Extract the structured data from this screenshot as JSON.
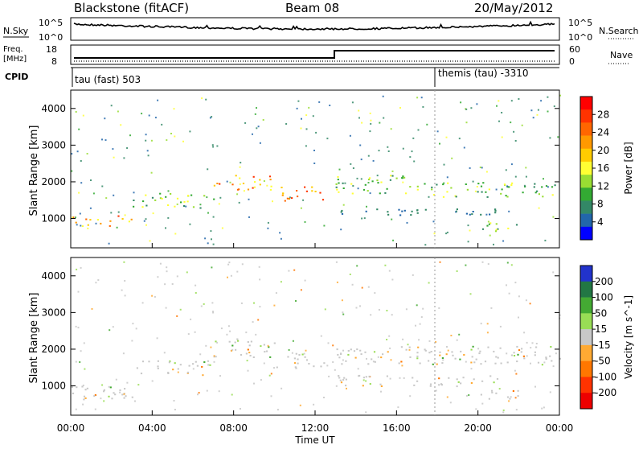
{
  "header": {
    "site": "Blackstone (fitACF)",
    "beam": "Beam 08",
    "date": "20/May/2012"
  },
  "top_panels": {
    "nsky_label": "N.Sky",
    "nsky_ticks": [
      "10^5",
      "10^0"
    ],
    "nsearch_label": "N.Search",
    "nsearch_ticks": [
      "10^5",
      "10^0"
    ],
    "freq_label": "Freq.",
    "freq_unit": "[MHz]",
    "freq_ticks": [
      "18",
      "8"
    ],
    "nave_label": "Nave",
    "nave_ticks": [
      "60",
      "0"
    ],
    "cpid_label": "CPID",
    "cpid_programs": [
      "tau (fast) 503",
      "themis (tau) -3310"
    ]
  },
  "colorbars": {
    "power": {
      "label": "Power [dB]",
      "ticks": [
        "28",
        "24",
        "20",
        "16",
        "12",
        "8",
        "4"
      ],
      "colors": [
        "#ff0000",
        "#ff3300",
        "#ff6600",
        "#ff9900",
        "#ffcc00",
        "#ffff33",
        "#99dd33",
        "#33aa33",
        "#338866",
        "#2266aa",
        "#0000ff"
      ]
    },
    "velocity": {
      "label": "Velocity [m s^-1]",
      "ticks": [
        "200",
        "100",
        "50",
        "15",
        "-15",
        "-50",
        "-100",
        "-200"
      ],
      "colors": [
        "#2233cc",
        "#227744",
        "#44aa33",
        "#99dd55",
        "#c8c8c8",
        "#ffaa33",
        "#ff7700",
        "#ff3300",
        "#ee0000"
      ]
    }
  },
  "x_axis": {
    "label": "Time UT",
    "ticks": [
      "00:00",
      "04:00",
      "08:00",
      "12:00",
      "16:00",
      "20:00",
      "00:00"
    ]
  },
  "chart_data": [
    {
      "type": "heatmap",
      "title": "Power",
      "ylabel": "Slant Range [km]",
      "xlabel": "",
      "y_ticks": [
        1000,
        2000,
        3000,
        4000
      ],
      "ylim": [
        200,
        4500
      ],
      "xlim": [
        0,
        24
      ],
      "colorbar": "Power [dB]",
      "bands": [
        {
          "t0": 0,
          "t1": 3,
          "r0": 800,
          "r1": 1100,
          "level": "high"
        },
        {
          "t0": 3,
          "t1": 7,
          "r0": 1300,
          "r1": 1700,
          "level": "mid"
        },
        {
          "t0": 7,
          "t1": 10,
          "r0": 1800,
          "r1": 2200,
          "level": "high"
        },
        {
          "t0": 10,
          "t1": 12.5,
          "r0": 1500,
          "r1": 1900,
          "level": "high"
        },
        {
          "t0": 13,
          "t1": 17,
          "r0": 1700,
          "r1": 2200,
          "level": "mid"
        },
        {
          "t0": 17,
          "t1": 24,
          "r0": 1600,
          "r1": 2000,
          "level": "mid"
        },
        {
          "t0": 13,
          "t1": 21,
          "r0": 1100,
          "r1": 1300,
          "level": "low"
        },
        {
          "t0": 20,
          "t1": 22,
          "r0": 600,
          "r1": 900,
          "level": "mid"
        }
      ]
    },
    {
      "type": "heatmap",
      "title": "Velocity",
      "ylabel": "Slant Range [km]",
      "xlabel": "Time UT",
      "y_ticks": [
        1000,
        2000,
        3000,
        4000
      ],
      "ylim": [
        200,
        4500
      ],
      "xlim": [
        0,
        24
      ],
      "colorbar": "Velocity [m s^-1]",
      "bands": [
        {
          "t0": 0,
          "t1": 3,
          "r0": 600,
          "r1": 1100,
          "level": "zero"
        },
        {
          "t0": 3,
          "t1": 7,
          "r0": 1300,
          "r1": 1700,
          "level": "zero"
        },
        {
          "t0": 7,
          "t1": 10,
          "r0": 1800,
          "r1": 2300,
          "level": "zero"
        },
        {
          "t0": 10,
          "t1": 12.5,
          "r0": 1500,
          "r1": 1900,
          "level": "zero"
        },
        {
          "t0": 13,
          "t1": 24,
          "r0": 1600,
          "r1": 2100,
          "level": "zero"
        },
        {
          "t0": 13,
          "t1": 21,
          "r0": 1000,
          "r1": 1300,
          "level": "zero"
        },
        {
          "t0": 20,
          "t1": 22,
          "r0": 600,
          "r1": 900,
          "level": "zero"
        }
      ]
    }
  ]
}
